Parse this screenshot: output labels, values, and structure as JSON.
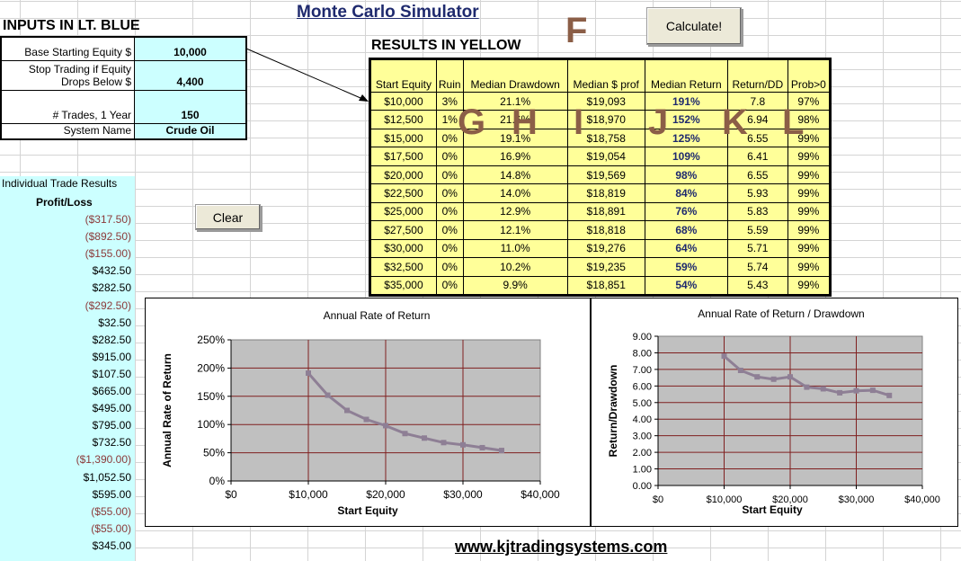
{
  "title": "Monte Carlo Simulator",
  "inputs_heading": "INPUTS IN LT. BLUE",
  "results_heading": "RESULTS IN YELLOW",
  "website": "www.kjtradingsystems.com",
  "buttons": {
    "calculate": "Calculate!",
    "clear": "Clear"
  },
  "letters": {
    "F": "F",
    "G": "G",
    "H": "H",
    "I": "I",
    "J": "J",
    "K": "K",
    "L": "L"
  },
  "inputs": {
    "base_equity_label": "Base Starting Equity $",
    "base_equity_value": "10,000",
    "stop_label_1": "Stop Trading if Equity",
    "stop_label_2": "Drops Below $",
    "stop_value": "4,400",
    "trades_label": "# Trades, 1 Year",
    "trades_value": "150",
    "system_label": "System Name",
    "system_value": "Crude Oil"
  },
  "trades": {
    "title": "Individual Trade Results",
    "header": "Profit/Loss",
    "values": [
      "($317.50)",
      "($892.50)",
      "($155.00)",
      "$432.50",
      "$282.50",
      "($292.50)",
      "$32.50",
      "$282.50",
      "$915.00",
      "$107.50",
      "$665.00",
      "$495.00",
      "$795.00",
      "$732.50",
      "($1,390.00)",
      "$1,052.50",
      "$595.00",
      "($55.00)",
      "($55.00)",
      "$345.00"
    ]
  },
  "results": {
    "headers": [
      "Start Equity",
      "Ruin",
      "Median Drawdown",
      "Median $ prof",
      "Median Return",
      "Return/DD",
      "Prob>0"
    ],
    "rows": [
      [
        "$10,000",
        "3%",
        "21.1%",
        "$19,093",
        "191%",
        "7.8",
        "97%"
      ],
      [
        "$12,500",
        "1%",
        "21.6%",
        "$18,970",
        "152%",
        "6.94",
        "98%"
      ],
      [
        "$15,000",
        "0%",
        "19.1%",
        "$18,758",
        "125%",
        "6.55",
        "99%"
      ],
      [
        "$17,500",
        "0%",
        "16.9%",
        "$19,054",
        "109%",
        "6.41",
        "99%"
      ],
      [
        "$20,000",
        "0%",
        "14.8%",
        "$19,569",
        "98%",
        "6.55",
        "99%"
      ],
      [
        "$22,500",
        "0%",
        "14.0%",
        "$18,819",
        "84%",
        "5.93",
        "99%"
      ],
      [
        "$25,000",
        "0%",
        "12.9%",
        "$18,891",
        "76%",
        "5.83",
        "99%"
      ],
      [
        "$27,500",
        "0%",
        "12.1%",
        "$18,818",
        "68%",
        "5.59",
        "99%"
      ],
      [
        "$30,000",
        "0%",
        "11.0%",
        "$19,276",
        "64%",
        "5.71",
        "99%"
      ],
      [
        "$32,500",
        "0%",
        "10.2%",
        "$19,235",
        "59%",
        "5.74",
        "99%"
      ],
      [
        "$35,000",
        "0%",
        "9.9%",
        "$18,851",
        "54%",
        "5.43",
        "99%"
      ]
    ]
  },
  "chart_data": [
    {
      "type": "line",
      "title": "Annual Rate of Return",
      "xlabel": "Start Equity",
      "ylabel": "Annual Rate of Return",
      "x": [
        10000,
        12500,
        15000,
        17500,
        20000,
        22500,
        25000,
        27500,
        30000,
        32500,
        35000
      ],
      "y": [
        191,
        152,
        125,
        109,
        98,
        84,
        76,
        68,
        64,
        59,
        54
      ],
      "xlim": [
        0,
        40000
      ],
      "ylim": [
        0,
        250
      ],
      "xticks": [
        "$0",
        "$10,000",
        "$20,000",
        "$30,000",
        "$40,000"
      ],
      "yticks": [
        "0%",
        "50%",
        "100%",
        "150%",
        "200%",
        "250%"
      ],
      "grid": true,
      "plot_bg": "#c0c0c0",
      "line_color": "#8e7f95",
      "grid_color": "#7f1f1f"
    },
    {
      "type": "line",
      "title": "Annual Rate of Return / Drawdown",
      "xlabel": "Start Equity",
      "ylabel": "Return/Drawdown",
      "x": [
        10000,
        12500,
        15000,
        17500,
        20000,
        22500,
        25000,
        27500,
        30000,
        32500,
        35000
      ],
      "y": [
        7.8,
        6.94,
        6.55,
        6.41,
        6.55,
        5.93,
        5.83,
        5.59,
        5.71,
        5.74,
        5.43
      ],
      "xlim": [
        0,
        40000
      ],
      "ylim": [
        0,
        9
      ],
      "xticks": [
        "$0",
        "$10,000",
        "$20,000",
        "$30,000",
        "$40,000"
      ],
      "yticks": [
        "0.00",
        "1.00",
        "2.00",
        "3.00",
        "4.00",
        "5.00",
        "6.00",
        "7.00",
        "8.00",
        "9.00"
      ],
      "grid": true,
      "plot_bg": "#c0c0c0",
      "line_color": "#8e7f95",
      "grid_color": "#7f1f1f"
    }
  ]
}
